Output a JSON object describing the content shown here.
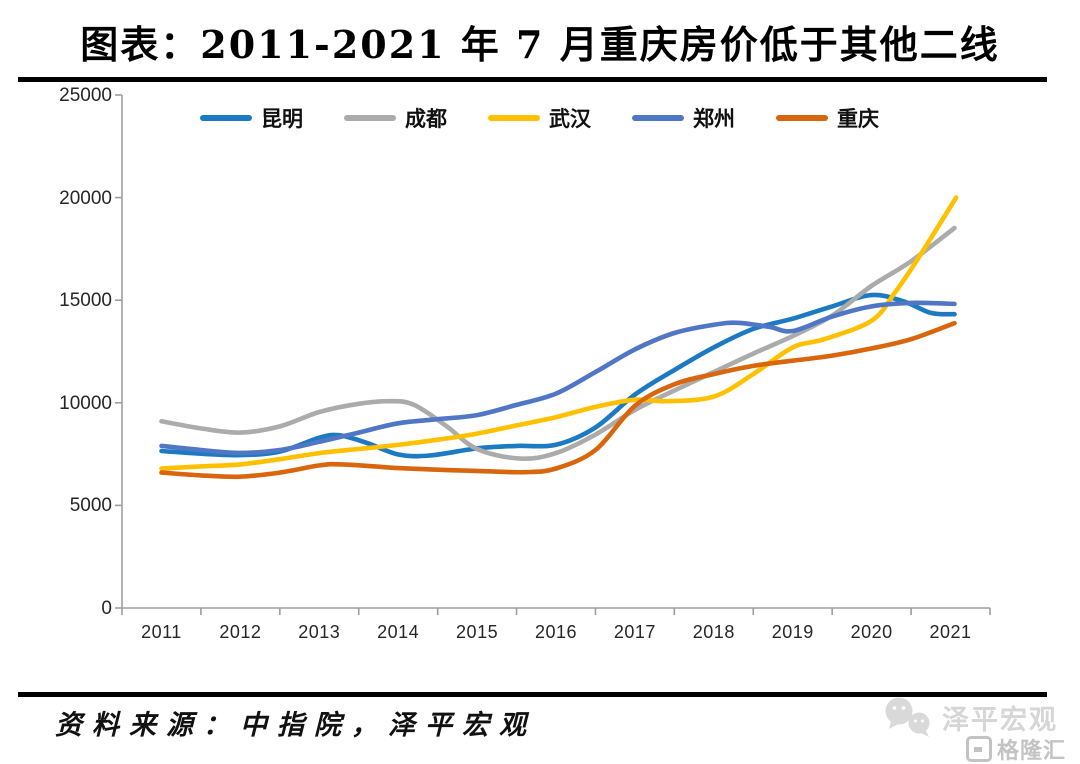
{
  "header": {
    "title": "图表：2011-2021 年 7 月重庆房价低于其他二线"
  },
  "chart_data": {
    "type": "line",
    "title": "图表：2011-2021 年 7 月重庆房价低于其他二线",
    "x_categories": [
      "2011",
      "2012",
      "2013",
      "2014",
      "2015",
      "2016",
      "2017",
      "2018",
      "2019",
      "2020",
      "2021"
    ],
    "y_ticks": [
      0,
      5000,
      10000,
      15000,
      20000,
      25000
    ],
    "ylim": [
      0,
      25000
    ],
    "grid": "off",
    "legend_position": "top",
    "axis_color": "#9e9e9e",
    "series": [
      {
        "name": "昆明",
        "color": "#1b7ac1",
        "x": [
          2011,
          2011.5,
          2012,
          2012.5,
          2013,
          2013.25,
          2013.6,
          2014,
          2014.4,
          2015,
          2015.5,
          2016,
          2016.5,
          2017,
          2017.5,
          2018,
          2018.5,
          2019,
          2019.5,
          2020,
          2020.4,
          2020.75,
          2021.05
        ],
        "values": [
          7650,
          7520,
          7450,
          7620,
          8300,
          8420,
          8050,
          7480,
          7430,
          7780,
          7900,
          7960,
          8800,
          10400,
          11600,
          12700,
          13600,
          14100,
          14700,
          15250,
          14950,
          14380,
          14320
        ]
      },
      {
        "name": "成都",
        "color": "#ababab",
        "x": [
          2011,
          2011.5,
          2012,
          2012.5,
          2013,
          2013.5,
          2013.9,
          2014.2,
          2014.6,
          2015,
          2015.55,
          2016,
          2016.5,
          2017,
          2017.5,
          2018,
          2018.5,
          2019,
          2019.5,
          2020,
          2020.5,
          2021.05
        ],
        "values": [
          9100,
          8750,
          8550,
          8850,
          9550,
          9950,
          10080,
          9900,
          8900,
          7750,
          7280,
          7550,
          8450,
          9650,
          10600,
          11500,
          12400,
          13250,
          14250,
          15700,
          16900,
          18520
        ]
      },
      {
        "name": "武汉",
        "color": "#ffc000",
        "x": [
          2011,
          2011.5,
          2012,
          2012.5,
          2013,
          2013.5,
          2014,
          2014.5,
          2015,
          2015.5,
          2016,
          2016.5,
          2017,
          2017.4,
          2018,
          2018.5,
          2019,
          2019.4,
          2020,
          2020.3,
          2020.6,
          2021.07
        ],
        "values": [
          6800,
          6900,
          7000,
          7250,
          7550,
          7750,
          7950,
          8200,
          8500,
          8900,
          9300,
          9800,
          10150,
          10080,
          10300,
          11400,
          12700,
          13100,
          14000,
          15400,
          17100,
          20000
        ]
      },
      {
        "name": "郑州",
        "color": "#5077c5",
        "x": [
          2011,
          2011.5,
          2012,
          2012.5,
          2013,
          2013.5,
          2014,
          2014.5,
          2015,
          2015.5,
          2016,
          2016.5,
          2017,
          2017.5,
          2018,
          2018.3,
          2018.7,
          2019,
          2019.5,
          2020,
          2020.5,
          2021.05
        ],
        "values": [
          7900,
          7700,
          7560,
          7700,
          8100,
          8550,
          9000,
          9200,
          9400,
          9900,
          10450,
          11500,
          12600,
          13400,
          13800,
          13900,
          13700,
          13500,
          14200,
          14700,
          14870,
          14820
        ]
      },
      {
        "name": "重庆",
        "color": "#d9660d",
        "x": [
          2011,
          2011.5,
          2012,
          2012.5,
          2013,
          2013.3,
          2014,
          2014.5,
          2015,
          2015.6,
          2016,
          2016.5,
          2017,
          2017.5,
          2018,
          2018.5,
          2019,
          2019.5,
          2020,
          2020.5,
          2021.05
        ],
        "values": [
          6600,
          6460,
          6400,
          6600,
          6950,
          7000,
          6820,
          6740,
          6680,
          6620,
          6800,
          7700,
          9850,
          10900,
          11400,
          11800,
          12050,
          12300,
          12650,
          13100,
          13880
        ]
      }
    ]
  },
  "footer": {
    "source": "资料来源：中指院，泽平宏观"
  },
  "watermark": {
    "brand": "泽平宏观",
    "platform": "格隆汇"
  }
}
